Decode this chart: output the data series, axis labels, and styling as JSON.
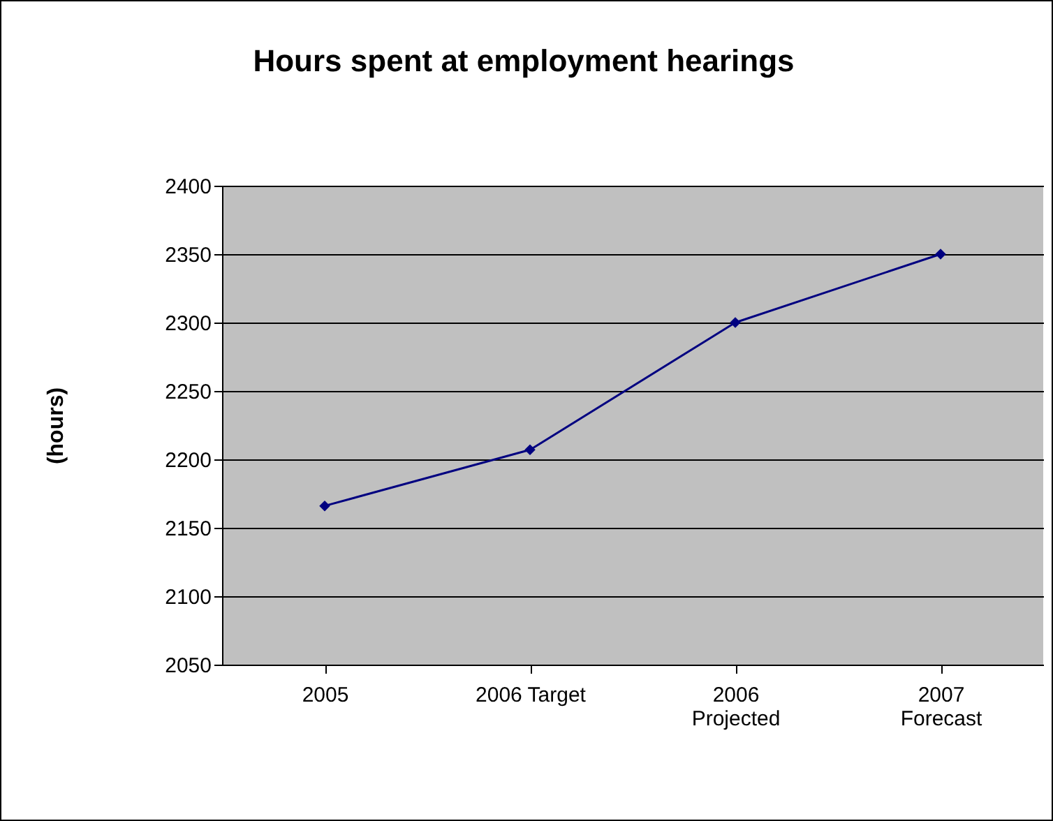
{
  "chart_data": {
    "type": "line",
    "title": "Hours spent at employment hearings",
    "ylabel": "(hours)",
    "categories": [
      "2005",
      "2006 Target",
      "2006\nProjected",
      "2007\nForecast"
    ],
    "series": [
      {
        "color": "#000080",
        "values": [
          2166,
          2207,
          2300,
          2350
        ]
      }
    ],
    "ylim": [
      2050,
      2400
    ],
    "yticks": [
      2050,
      2100,
      2150,
      2200,
      2250,
      2300,
      2350,
      2400
    ],
    "grid": "y",
    "marker": "diamond",
    "legend": false
  }
}
